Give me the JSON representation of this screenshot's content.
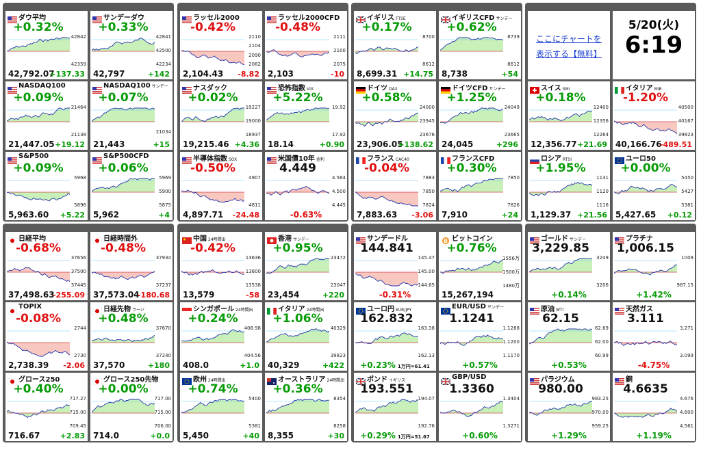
{
  "panels": [
    {
      "tiles": [
        {
          "name": "ダウ平均",
          "flag": "us",
          "pct": "+0.32%",
          "price": "42,792.07",
          "chg": "+137.33",
          "axis": [
            "42842",
            "42359"
          ]
        },
        {
          "name": "サンデーダウ",
          "flag": "us",
          "pct": "+0.33%",
          "price": "42,797",
          "chg": "+142",
          "axis": [
            "42841",
            "42500",
            "42234"
          ]
        },
        {
          "name": "NASDAQ100",
          "flag": "us",
          "pct": "+0.09%",
          "price": "21,447.05",
          "chg": "+19.12",
          "axis": [
            "21464",
            "21138"
          ]
        },
        {
          "name": "NASDAQ100",
          "sub": "サンデー",
          "flag": "us",
          "pct": "+0.07%",
          "price": "21,443",
          "chg": "+15",
          "axis": [
            "21034"
          ]
        },
        {
          "name": "S&P500",
          "flag": "us",
          "pct": "+0.09%",
          "price": "5,963.60",
          "chg": "+5.22",
          "axis": [
            "5968",
            "5896"
          ]
        },
        {
          "name": "S&P500CFD",
          "flag": "us",
          "pct": "+0.06%",
          "price": "5,962",
          "chg": "+4",
          "axis": [
            "5969",
            "5900",
            "5875"
          ]
        }
      ]
    },
    {
      "tiles": [
        {
          "name": "ラッセル2000",
          "flag": "us",
          "pct": "-0.42%",
          "price": "2,104.43",
          "chg": "-8.82",
          "axis": [
            "2110",
            "2104",
            "2090",
            "2082"
          ]
        },
        {
          "name": "ラッセル2000CFD",
          "flag": "us",
          "pct": "-0.48%",
          "price": "2,103",
          "chg": "-10",
          "axis": [
            "2111",
            "2100",
            "2075"
          ]
        },
        {
          "name": "ナスダック",
          "flag": "us",
          "pct": "+0.02%",
          "price": "19,215.46",
          "chg": "+4.36",
          "axis": [
            "19227",
            "19000",
            "18937"
          ]
        },
        {
          "name": "恐怖指数",
          "sub": "VIX",
          "flag": "us",
          "pct": "+5.22%",
          "price": "18.14",
          "chg": "+0.90",
          "axis": [
            "19.92",
            "17.92"
          ]
        },
        {
          "name": "半導体指数",
          "sub": "SOX",
          "flag": "us",
          "pct": "-0.50%",
          "price": "4,897.71",
          "chg": "-24.48",
          "axis": [
            "4907",
            "4811"
          ]
        },
        {
          "name": "米国債10年",
          "sub": "金利",
          "flag": "us",
          "price_top": true,
          "price": "4.449",
          "pct": "-0.63%",
          "axis": [
            "4.564",
            "4.500",
            "4.445"
          ]
        }
      ]
    },
    {
      "tiles": [
        {
          "name": "イギリス",
          "sub": "FTSE",
          "flag": "gb",
          "pct": "+0.17%",
          "price": "8,699.31",
          "chg": "+14.75",
          "axis": [
            "8700",
            "8612"
          ]
        },
        {
          "name": "イギリスCFD",
          "sub": "サンデー",
          "flag": "gb",
          "pct": "+0.62%",
          "price": "8,738",
          "chg": "+54",
          "axis": [
            "8739",
            "8612"
          ]
        },
        {
          "name": "ドイツ",
          "sub": "DAX",
          "flag": "de",
          "pct": "+0.58%",
          "price": "23,906.05",
          "chg": "+138.62",
          "axis": [
            "24000",
            "23945",
            "23676"
          ]
        },
        {
          "name": "ドイツCFD",
          "sub": "サンデー",
          "flag": "de",
          "pct": "+1.25%",
          "price": "24,045",
          "chg": "+296",
          "axis": [
            "24049",
            "23665"
          ]
        },
        {
          "name": "フランス",
          "sub": "CAC40",
          "flag": "fr",
          "pct": "-0.04%",
          "price": "7,883.63",
          "chg": "-3.06",
          "axis": [
            "7883",
            "7850",
            "7824"
          ]
        },
        {
          "name": "フランスCFD",
          "flag": "fr",
          "pct": "+0.30%",
          "price": "7,910",
          "chg": "+24",
          "axis": [
            "7850",
            "7826"
          ]
        }
      ]
    },
    {
      "link": "ここにチャートを表示する【無料】",
      "date": "5/20(火)",
      "time": "6:19",
      "tiles": [
        {
          "name": "スイス",
          "sub": "SMI",
          "flag": "ch",
          "pct": "+0.18%",
          "price": "12,356.77",
          "chg": "+21.69",
          "axis": [
            "12400",
            "12356",
            "12264"
          ]
        },
        {
          "name": "イタリア",
          "sub": "MIB",
          "flag": "it",
          "pct": "-1.20%",
          "price": "40,166.76",
          "chg": "-489.51",
          "axis": [
            "40500",
            "40167",
            "39823"
          ]
        },
        {
          "name": "ロシア",
          "sub": "RTSI",
          "flag": "ru",
          "pct": "+1.95%",
          "price": "1,129.37",
          "chg": "+21.56",
          "axis": [
            "1131",
            "1120",
            "1116"
          ]
        },
        {
          "name": "ユーロ50",
          "flag": "eu",
          "pct": "+0.00%",
          "price": "5,427.65",
          "chg": "+0.12",
          "axis": [
            "5450",
            "5427",
            "5381"
          ]
        }
      ]
    },
    {
      "tiles": [
        {
          "name": "日経平均",
          "flag": "jp",
          "pct": "-0.68%",
          "price": "37,498.63",
          "chg": "-255.09",
          "axis": [
            "37656",
            "37500",
            "37445"
          ]
        },
        {
          "name": "日経時間外",
          "flag": "jp",
          "pct": "-0.48%",
          "price": "37,573.04",
          "chg": "-180.68",
          "axis": [
            "37934",
            "37237"
          ]
        },
        {
          "name": "TOPIX",
          "flag": "jp",
          "pct": "-0.08%",
          "price": "2,738.39",
          "chg": "-2.06",
          "axis": [
            "2744",
            "2730"
          ]
        },
        {
          "name": "日経先物",
          "sub": "ラージ",
          "flag": "jp",
          "pct": "+0.48%",
          "price": "37,570",
          "chg": "+180",
          "axis": [
            "37670",
            "37240"
          ]
        },
        {
          "name": "グロース250",
          "flag": "jp",
          "pct": "+0.40%",
          "price": "716.67",
          "chg": "+2.83",
          "axis": [
            "717.27",
            "715.00",
            "709.45"
          ]
        },
        {
          "name": "グロース250先物",
          "flag": "jp",
          "pct": "+0.00%",
          "price": "714.0",
          "chg": "+0.0",
          "axis": [
            "717.00",
            "715.00",
            "706.00"
          ]
        }
      ]
    },
    {
      "tiles": [
        {
          "name": "中国",
          "sub": "24時間出",
          "flag": "cn",
          "pct": "-0.42%",
          "price": "13,579",
          "chg": "-58",
          "axis": [
            "13636",
            "13600",
            "13538"
          ]
        },
        {
          "name": "香港",
          "sub": "サンデー",
          "flag": "hk",
          "pct": "+0.95%",
          "price": "23,454",
          "chg": "+220",
          "axis": [
            "23472",
            "23047"
          ]
        },
        {
          "name": "シンガポール",
          "sub": "24時間出",
          "flag": "sg",
          "pct": "+0.24%",
          "price": "408.0",
          "chg": "+1.0",
          "axis": [
            "408.98",
            "404.56"
          ]
        },
        {
          "name": "イタリア",
          "sub": "24時間出",
          "flag": "it",
          "pct": "+1.06%",
          "price": "40,329",
          "chg": "+422",
          "axis": [
            "40329",
            "39823"
          ]
        },
        {
          "name": "欧州",
          "sub": "24時間出",
          "flag": "eu",
          "pct": "+0.74%",
          "price": "5,450",
          "chg": "+40",
          "axis": [
            "5400",
            "5381"
          ]
        },
        {
          "name": "オーストラリア",
          "sub": "24時間出",
          "flag": "au",
          "pct": "+0.36%",
          "price": "8,355",
          "chg": "+30",
          "axis": [
            "8354",
            "8258"
          ]
        }
      ]
    },
    {
      "tiles": [
        {
          "name": "サンデードル",
          "flag": "us",
          "price_top": true,
          "price": "144.841",
          "pct": "-0.31%",
          "axis": [
            "145.47",
            "145.00",
            "144.65"
          ]
        },
        {
          "name": "ビットコイン",
          "flag": "btc",
          "pct": "+0.76%",
          "price": "15,267,194",
          "axis": [
            "1556万",
            "1500万",
            "1480万"
          ]
        },
        {
          "name": "ユーロ円",
          "sub": "EUR/JPY",
          "flag": "eu",
          "price_top": true,
          "price": "162.832",
          "pct": "+0.23%",
          "extra": "1万円=61.41",
          "axis": [
            "163.38",
            "162.13"
          ]
        },
        {
          "name": "EUR/USD",
          "sub": "サンデー",
          "flag": "eu",
          "price_top": true,
          "price": "1.1241",
          "pct": "+0.57%",
          "axis": [
            "1.1288",
            "1.1200",
            "1.1170"
          ]
        },
        {
          "name": "ポンド",
          "sub": "イギリス",
          "flag": "gb",
          "price_top": true,
          "price": "193.551",
          "pct": "+0.29%",
          "extra": "1万円=51.67",
          "axis": [
            "194.07",
            "192.76"
          ]
        },
        {
          "name": "GBP/USD",
          "flag": "gb",
          "price_top": true,
          "price": "1.3360",
          "pct": "+0.60%",
          "axis": [
            "1.3404",
            "1.3271"
          ]
        }
      ]
    },
    {
      "tiles": [
        {
          "name": "ゴールド",
          "sub": "サンデー",
          "flag": "us",
          "price_top": true,
          "price": "3,229.85",
          "pct": "+0.14%",
          "axis": [
            "3249",
            "3206"
          ]
        },
        {
          "name": "プラチナ",
          "flag": "us",
          "price_top": true,
          "price": "1,006.15",
          "pct": "+1.42%",
          "axis": [
            "1009",
            "987.15"
          ]
        },
        {
          "name": "原油",
          "sub": "WTI",
          "flag": "us",
          "price_top": true,
          "price": "62.15",
          "pct": "+0.53%",
          "axis": [
            "62.69",
            "62.00",
            "60.99"
          ]
        },
        {
          "name": "天然ガス",
          "flag": "us",
          "price_top": true,
          "price": "3.111",
          "pct": "-4.75%",
          "axis": [
            "3.271",
            "3.099"
          ]
        },
        {
          "name": "パラジウム",
          "flag": "us",
          "price_top": true,
          "price": "980.00",
          "pct": "+1.29%",
          "axis": [
            "983.25",
            "970.00",
            "959.25"
          ]
        },
        {
          "name": "銅",
          "flag": "us",
          "price_top": true,
          "price": "4.6635",
          "pct": "+1.19%",
          "axis": [
            "4.676",
            "4.600",
            "4.561"
          ]
        }
      ]
    }
  ]
}
